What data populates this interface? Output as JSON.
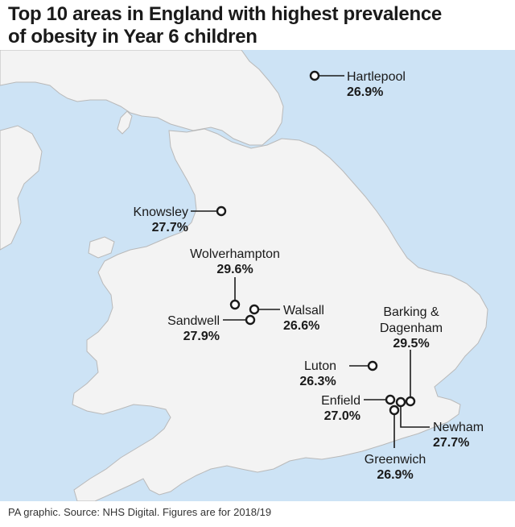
{
  "title": {
    "line1": "Top 10 areas in England with highest prevalence",
    "line2": "of obesity in Year 6 children"
  },
  "colors": {
    "sea": "#cde3f5",
    "land": "#f3f3f3",
    "coast_line": "#b9b9b9",
    "marker_fill": "#ffffff",
    "marker_stroke": "#1a1a1a"
  },
  "areas": [
    {
      "id": "hartlepool",
      "name": "Hartlepool",
      "value": "26.9%"
    },
    {
      "id": "knowsley",
      "name": "Knowsley",
      "value": "27.7%"
    },
    {
      "id": "wolverhampton",
      "name": "Wolverhampton",
      "value": "29.6%"
    },
    {
      "id": "walsall",
      "name": "Walsall",
      "value": "26.6%"
    },
    {
      "id": "sandwell",
      "name": "Sandwell",
      "value": "27.9%"
    },
    {
      "id": "barking",
      "name": "Barking &",
      "name2": "Dagenham",
      "value": "29.5%"
    },
    {
      "id": "luton",
      "name": "Luton",
      "value": "26.3%"
    },
    {
      "id": "enfield",
      "name": "Enfield",
      "value": "27.0%"
    },
    {
      "id": "newham",
      "name": "Newham",
      "value": "27.7%"
    },
    {
      "id": "greenwich",
      "name": "Greenwich",
      "value": "26.9%"
    }
  ],
  "source": "PA graphic. Source: NHS Digital. Figures are for 2018/19"
}
